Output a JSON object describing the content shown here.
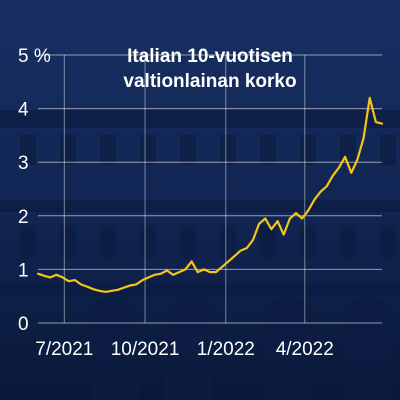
{
  "colors": {
    "background": "#14295a",
    "line": "#f5c518",
    "text": "#ffffff",
    "grid": "#ffffff"
  },
  "chart_data": {
    "type": "line",
    "title_lines": [
      "Italian 10-vuotisen",
      "valtionlainan korko"
    ],
    "xlabel": "",
    "ylabel": "",
    "y_unit": "%",
    "y_ticks": [
      {
        "value": 0,
        "label": "0"
      },
      {
        "value": 1,
        "label": "1"
      },
      {
        "value": 2,
        "label": "2"
      },
      {
        "value": 3,
        "label": "3"
      },
      {
        "value": 4,
        "label": "4"
      },
      {
        "value": 5,
        "label": "5 %"
      }
    ],
    "ylim": [
      0,
      5
    ],
    "xlim": [
      "2021-06-01",
      "2022-06-28"
    ],
    "x_ticks": [
      {
        "value": "2021-07-01",
        "label": "7/2021"
      },
      {
        "value": "2021-10-01",
        "label": "10/2021"
      },
      {
        "value": "2022-01-01",
        "label": "1/2022"
      },
      {
        "value": "2022-04-01",
        "label": "4/2022"
      }
    ],
    "grid": true,
    "legend": "none",
    "series": [
      {
        "x": [
          "2021-06-01",
          "2021-06-08",
          "2021-06-15",
          "2021-06-22",
          "2021-06-29",
          "2021-07-06",
          "2021-07-13",
          "2021-07-20",
          "2021-07-27",
          "2021-08-03",
          "2021-08-10",
          "2021-08-17",
          "2021-08-24",
          "2021-08-31",
          "2021-09-07",
          "2021-09-14",
          "2021-09-21",
          "2021-09-28",
          "2021-10-05",
          "2021-10-12",
          "2021-10-19",
          "2021-10-26",
          "2021-11-02",
          "2021-11-09",
          "2021-11-16",
          "2021-11-23",
          "2021-11-30",
          "2021-12-07",
          "2021-12-14",
          "2021-12-21",
          "2021-12-28",
          "2022-01-04",
          "2022-01-11",
          "2022-01-18",
          "2022-01-25",
          "2022-02-01",
          "2022-02-08",
          "2022-02-15",
          "2022-02-22",
          "2022-03-01",
          "2022-03-08",
          "2022-03-15",
          "2022-03-22",
          "2022-03-29",
          "2022-04-05",
          "2022-04-12",
          "2022-04-19",
          "2022-04-26",
          "2022-05-03",
          "2022-05-10",
          "2022-05-17",
          "2022-05-24",
          "2022-05-31",
          "2022-06-07",
          "2022-06-14",
          "2022-06-21",
          "2022-06-28"
        ],
        "values": [
          0.92,
          0.88,
          0.85,
          0.9,
          0.85,
          0.78,
          0.8,
          0.72,
          0.68,
          0.63,
          0.6,
          0.58,
          0.6,
          0.62,
          0.66,
          0.7,
          0.72,
          0.8,
          0.85,
          0.9,
          0.92,
          0.98,
          0.9,
          0.95,
          1.0,
          1.15,
          0.95,
          1.0,
          0.95,
          0.95,
          1.05,
          1.15,
          1.25,
          1.35,
          1.4,
          1.55,
          1.85,
          1.95,
          1.75,
          1.9,
          1.65,
          1.95,
          2.05,
          1.95,
          2.1,
          2.3,
          2.45,
          2.55,
          2.75,
          2.9,
          3.1,
          2.8,
          3.05,
          3.45,
          4.2,
          3.75,
          3.72
        ]
      }
    ]
  }
}
